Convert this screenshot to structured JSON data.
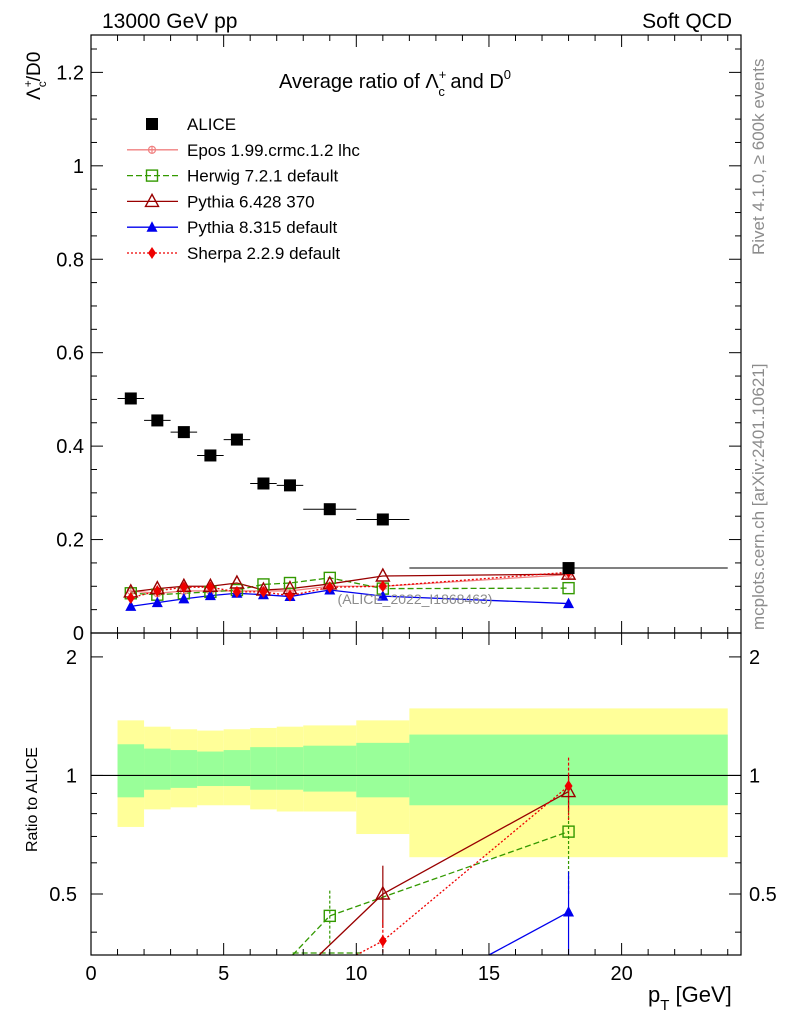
{
  "header": {
    "energy_label": "13000 GeV pp",
    "category_label": "Soft QCD",
    "rivet_label": "Rivet 4.1.0, ≥ 600k events",
    "mcplots_label": "mcplots.cern.ch [arXiv:2401.10621]"
  },
  "colors": {
    "data": "#000000",
    "epos": "#f08080",
    "herwig": "#339900",
    "pythia6": "#990000",
    "pythia8": "#0000ee",
    "sherpa": "#ee0000",
    "band_outer": "#ffff99",
    "band_inner": "#99ff99"
  },
  "chart_data": [
    {
      "type": "scatter",
      "title": "Average ratio of Λc+ and D0",
      "title_parts": {
        "prefix": "Average ratio of ",
        "lambda": "Λ",
        "sup": "+",
        "sub": "c",
        "mid": " and D",
        "sup2": "0"
      },
      "ylabel": "Λc+/D0",
      "ylabel_parts": {
        "lambda": "Λ",
        "sup": "+",
        "sub": "c",
        "rest": "/D0"
      },
      "xlim": [
        0,
        24.5
      ],
      "ylim": [
        0,
        1.28
      ],
      "yticks": [
        {
          "v": 0.2,
          "label": "0.2"
        },
        {
          "v": 0.4,
          "label": "0.4"
        },
        {
          "v": 0.6,
          "label": "0.6"
        },
        {
          "v": 0.8,
          "label": "0.8"
        },
        {
          "v": 1.0,
          "label": "1"
        },
        {
          "v": 1.2,
          "label": "1.2"
        }
      ],
      "zero_label": "0",
      "watermark": "(ALICE_2022_I1868463)",
      "legend_position": "top-left",
      "legend": [
        {
          "key": "data",
          "label": "ALICE"
        },
        {
          "key": "epos",
          "label": "Epos 1.99.crmc.1.2 lhc"
        },
        {
          "key": "herwig",
          "label": "Herwig 7.2.1 default"
        },
        {
          "key": "pythia6",
          "label": "Pythia 6.428 370"
        },
        {
          "key": "pythia8",
          "label": "Pythia 8.315 default"
        },
        {
          "key": "sherpa",
          "label": "Sherpa 2.2.9 default"
        }
      ],
      "data_series": {
        "name": "ALICE",
        "x": [
          1.5,
          2.5,
          3.5,
          4.5,
          5.5,
          6.5,
          7.5,
          9,
          11,
          18
        ],
        "y": [
          0.502,
          0.455,
          0.43,
          0.38,
          0.414,
          0.32,
          0.316,
          0.265,
          0.243,
          0.139
        ],
        "xerr_lo": [
          0.5,
          0.5,
          0.5,
          0.5,
          0.5,
          0.5,
          0.5,
          1,
          1,
          6
        ],
        "xerr_hi": [
          0.5,
          0.5,
          0.5,
          0.5,
          0.5,
          0.5,
          0.5,
          1,
          1,
          6
        ]
      },
      "series": [
        {
          "key": "epos",
          "name": "Epos 1.99.crmc.1.2 lhc",
          "x": [
            1.5,
            2.5,
            3.5,
            4.5,
            5.5,
            6.5,
            7.5,
            9,
            11,
            18
          ],
          "y": [
            0.09,
            0.085,
            0.09,
            0.09,
            0.09,
            0.09,
            0.09,
            0.1,
            0.1,
            0.125
          ]
        },
        {
          "key": "herwig",
          "name": "Herwig 7.2.1 default",
          "x": [
            1.5,
            2.5,
            3.5,
            4.5,
            5.5,
            6.5,
            7.5,
            9,
            11,
            18
          ],
          "y": [
            0.085,
            0.082,
            0.085,
            0.088,
            0.092,
            0.104,
            0.107,
            0.118,
            0.095,
            0.096
          ]
        },
        {
          "key": "pythia6",
          "name": "Pythia 6.428 370",
          "x": [
            1.5,
            2.5,
            3.5,
            4.5,
            5.5,
            6.5,
            7.5,
            9,
            11,
            18
          ],
          "y": [
            0.088,
            0.095,
            0.1,
            0.1,
            0.107,
            0.092,
            0.095,
            0.105,
            0.122,
            0.126
          ]
        },
        {
          "key": "pythia8",
          "name": "Pythia 8.315 default",
          "x": [
            1.5,
            2.5,
            3.5,
            4.5,
            5.5,
            6.5,
            7.5,
            9,
            11,
            18
          ],
          "y": [
            0.057,
            0.065,
            0.073,
            0.08,
            0.085,
            0.082,
            0.078,
            0.092,
            0.079,
            0.063
          ]
        },
        {
          "key": "sherpa",
          "name": "Sherpa 2.2.9 default",
          "x": [
            1.5,
            2.5,
            3.5,
            4.5,
            5.5,
            6.5,
            7.5,
            9,
            11,
            18
          ],
          "y": [
            0.075,
            0.09,
            0.098,
            0.098,
            0.088,
            0.088,
            0.08,
            0.098,
            0.1,
            0.13
          ]
        }
      ]
    },
    {
      "type": "scatter",
      "title": "",
      "ylabel": "Ratio to ALICE",
      "xlabel": "pT [GeV]",
      "xlabel_parts": {
        "p": "p",
        "sub": "T",
        "rest": " [GeV]"
      },
      "xlim": [
        0,
        24.5
      ],
      "ylim": [
        0.35,
        2.3
      ],
      "xticks": [
        {
          "v": 0,
          "label": "0"
        },
        {
          "v": 5,
          "label": "5"
        },
        {
          "v": 10,
          "label": "10"
        },
        {
          "v": 15,
          "label": "15"
        },
        {
          "v": 20,
          "label": "20"
        }
      ],
      "yticks": [
        {
          "v": 0.5,
          "label": "0.5"
        },
        {
          "v": 1,
          "label": "1"
        },
        {
          "v": 2,
          "label": "2"
        }
      ],
      "bands": [
        {
          "x0": 1,
          "x1": 2,
          "outer": [
            0.74,
            1.38
          ],
          "inner": [
            0.88,
            1.2
          ]
        },
        {
          "x0": 2,
          "x1": 3,
          "outer": [
            0.82,
            1.33
          ],
          "inner": [
            0.92,
            1.17
          ]
        },
        {
          "x0": 3,
          "x1": 4,
          "outer": [
            0.83,
            1.31
          ],
          "inner": [
            0.93,
            1.16
          ]
        },
        {
          "x0": 4,
          "x1": 5,
          "outer": [
            0.84,
            1.3
          ],
          "inner": [
            0.94,
            1.15
          ]
        },
        {
          "x0": 5,
          "x1": 6,
          "outer": [
            0.84,
            1.31
          ],
          "inner": [
            0.94,
            1.16
          ]
        },
        {
          "x0": 6,
          "x1": 7,
          "outer": [
            0.82,
            1.32
          ],
          "inner": [
            0.92,
            1.18
          ]
        },
        {
          "x0": 7,
          "x1": 8,
          "outer": [
            0.81,
            1.33
          ],
          "inner": [
            0.92,
            1.18
          ]
        },
        {
          "x0": 8,
          "x1": 10,
          "outer": [
            0.81,
            1.34
          ],
          "inner": [
            0.91,
            1.19
          ]
        },
        {
          "x0": 10,
          "x1": 12,
          "outer": [
            0.71,
            1.38
          ],
          "inner": [
            0.88,
            1.21
          ]
        },
        {
          "x0": 12,
          "x1": 24,
          "outer": [
            0.62,
            1.48
          ],
          "inner": [
            0.84,
            1.27
          ]
        }
      ],
      "series": [
        {
          "key": "herwig",
          "name": "Herwig 7.2.1 default",
          "x": [
            9,
            18
          ],
          "y": [
            0.44,
            0.72
          ],
          "err": [
            0.07,
            0.22
          ],
          "cut_at_bottom": [
            [
              7.6,
              0.35
            ],
            [
              10.3,
              0.35
            ]
          ]
        },
        {
          "key": "pythia6",
          "name": "Pythia 6.428 370",
          "x": [
            11,
            18
          ],
          "y": [
            0.5,
            0.91
          ],
          "err": [
            0.09,
            0.1
          ],
          "cut_at_bottom": [
            [
              8.6,
              0.35
            ]
          ]
        },
        {
          "key": "pythia8",
          "name": "Pythia 8.315 default",
          "x": [
            18
          ],
          "y": [
            0.45
          ],
          "err": [
            0.12
          ],
          "cut_at_bottom": [
            [
              15,
              0.35
            ]
          ]
        },
        {
          "key": "sherpa",
          "name": "Sherpa 2.2.9 default",
          "x": [
            11,
            18
          ],
          "y": [
            0.38,
            0.94
          ],
          "err": [
            0.05,
            0.17
          ],
          "cut_at_bottom": [
            [
              10,
              0.35
            ]
          ]
        }
      ]
    }
  ]
}
